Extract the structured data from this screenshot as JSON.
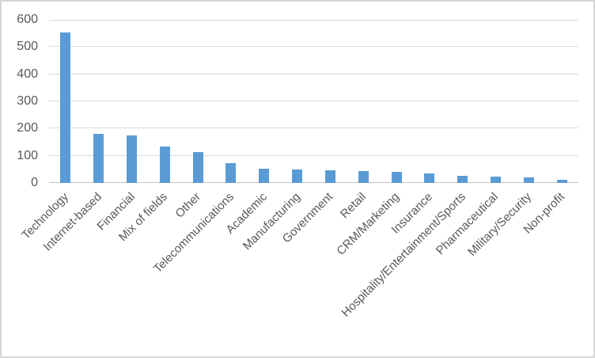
{
  "chart_data": {
    "type": "bar",
    "title": "",
    "xlabel": "",
    "ylabel": "",
    "categories": [
      "Technology",
      "Internet-based",
      "Financial",
      "Mix of fields",
      "Other",
      "Telecommunications",
      "Academic",
      "Manufacturing",
      "Government",
      "Retail",
      "CRM/Marketing",
      "Insurance",
      "Hospitality/Entertainment/Sports",
      "Pharmaceutical",
      "Military/Security",
      "Non-profit"
    ],
    "values": [
      553,
      181,
      175,
      134,
      113,
      73,
      52,
      50,
      47,
      44,
      40,
      36,
      27,
      22,
      21,
      13
    ],
    "ylim": [
      0,
      600
    ],
    "yticks": [
      0,
      100,
      200,
      300,
      400,
      500,
      600
    ],
    "grid": true,
    "legend": false,
    "colors": {
      "bar": "#5B9BD5",
      "gridline": "#d9d9d9",
      "axis_line": "#c3c3c3",
      "tick_text": "#595959",
      "frame_border": "#d6d6d6",
      "background": "#ffffff"
    }
  }
}
